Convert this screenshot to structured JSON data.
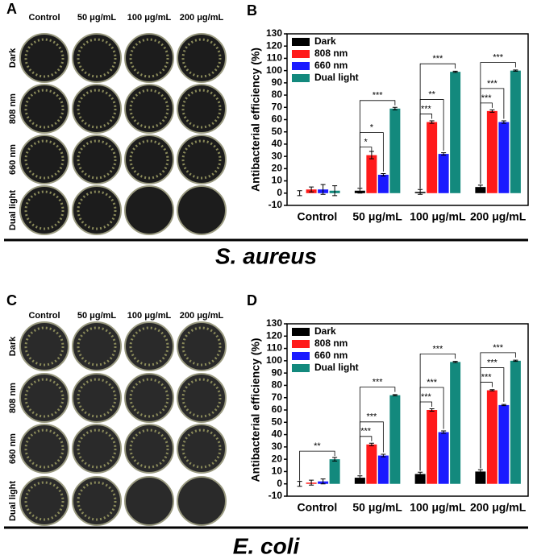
{
  "photo_panels": [
    {
      "label": "A",
      "columns": [
        "Control",
        "50 μg/mL",
        "100 μg/mL",
        "200 μg/mL"
      ],
      "rows": [
        "Dark",
        "808 nm",
        "660 nm",
        "Dual light"
      ]
    },
    {
      "label": "C",
      "columns": [
        "Control",
        "50 μg/mL",
        "100 μg/mL",
        "200 μg/mL"
      ],
      "rows": [
        "Dark",
        "808 nm",
        "660 nm",
        "Dual light"
      ]
    }
  ],
  "species": [
    "S. aureus",
    "E. coli"
  ],
  "chart_data": [
    {
      "type": "bar",
      "panel_label": "B",
      "y_label": "Antibacterial efficiency (%)",
      "categories": [
        "Control",
        "50 μg/mL",
        "100 μg/mL",
        "200 μg/mL"
      ],
      "series": [
        {
          "name": "Dark",
          "color": "#000000",
          "values": [
            0,
            2,
            1,
            5
          ],
          "errors": [
            2,
            2,
            2,
            1.5
          ]
        },
        {
          "name": "808 nm",
          "color": "#ff1a1a",
          "values": [
            3,
            31,
            58,
            67
          ],
          "errors": [
            2,
            3,
            1,
            1
          ]
        },
        {
          "name": "660 nm",
          "color": "#1a1aff",
          "values": [
            3,
            15,
            32,
            58
          ],
          "errors": [
            4,
            1,
            1,
            1
          ]
        },
        {
          "name": "Dual light",
          "color": "#13897d",
          "values": [
            2,
            69,
            99,
            100
          ],
          "errors": [
            4,
            1,
            0.5,
            0.5
          ]
        }
      ],
      "annotations": [
        {
          "category": 1,
          "from": 0,
          "to": 1,
          "label": "*"
        },
        {
          "category": 1,
          "from": 0,
          "to": 2,
          "label": "*"
        },
        {
          "category": 1,
          "from": 0,
          "to": 3,
          "label": "***"
        },
        {
          "category": 2,
          "from": 0,
          "to": 1,
          "label": "***"
        },
        {
          "category": 2,
          "from": 0,
          "to": 2,
          "label": "**"
        },
        {
          "category": 2,
          "from": 0,
          "to": 3,
          "label": "***"
        },
        {
          "category": 3,
          "from": 0,
          "to": 1,
          "label": "***"
        },
        {
          "category": 3,
          "from": 0,
          "to": 2,
          "label": "***"
        },
        {
          "category": 3,
          "from": 0,
          "to": 3,
          "label": "***"
        }
      ],
      "ylim": [
        -10,
        130
      ],
      "yticks": [
        -10,
        0,
        10,
        20,
        30,
        40,
        50,
        60,
        70,
        80,
        90,
        100,
        110,
        120,
        130
      ],
      "legend": "upper left"
    },
    {
      "type": "bar",
      "panel_label": "D",
      "y_label": "Antibacterial efficiency (%)",
      "categories": [
        "Control",
        "50 μg/mL",
        "100 μg/mL",
        "200 μg/mL"
      ],
      "series": [
        {
          "name": "Dark",
          "color": "#000000",
          "values": [
            0,
            5,
            8,
            10
          ],
          "errors": [
            2,
            1.5,
            1.5,
            1.5
          ]
        },
        {
          "name": "808 nm",
          "color": "#ff1a1a",
          "values": [
            1,
            32,
            60,
            76
          ],
          "errors": [
            2,
            1,
            1,
            0.5
          ]
        },
        {
          "name": "660 nm",
          "color": "#1a1aff",
          "values": [
            2,
            23,
            42,
            64
          ],
          "errors": [
            2,
            1,
            1,
            0.5
          ]
        },
        {
          "name": "Dual light",
          "color": "#13897d",
          "values": [
            20,
            72,
            99,
            100
          ],
          "errors": [
            1.5,
            0.5,
            0.5,
            0.5
          ]
        }
      ],
      "annotations": [
        {
          "category": 0,
          "from": 0,
          "to": 3,
          "label": "**"
        },
        {
          "category": 1,
          "from": 0,
          "to": 1,
          "label": "***"
        },
        {
          "category": 1,
          "from": 0,
          "to": 2,
          "label": "***"
        },
        {
          "category": 1,
          "from": 0,
          "to": 3,
          "label": "***"
        },
        {
          "category": 2,
          "from": 0,
          "to": 1,
          "label": "***"
        },
        {
          "category": 2,
          "from": 0,
          "to": 2,
          "label": "***"
        },
        {
          "category": 2,
          "from": 0,
          "to": 3,
          "label": "***"
        },
        {
          "category": 3,
          "from": 0,
          "to": 1,
          "label": "***"
        },
        {
          "category": 3,
          "from": 0,
          "to": 2,
          "label": "***"
        },
        {
          "category": 3,
          "from": 0,
          "to": 3,
          "label": "***"
        }
      ],
      "ylim": [
        -10,
        130
      ],
      "yticks": [
        -10,
        0,
        10,
        20,
        30,
        40,
        50,
        60,
        70,
        80,
        90,
        100,
        110,
        120,
        130
      ],
      "legend": "upper left"
    }
  ]
}
